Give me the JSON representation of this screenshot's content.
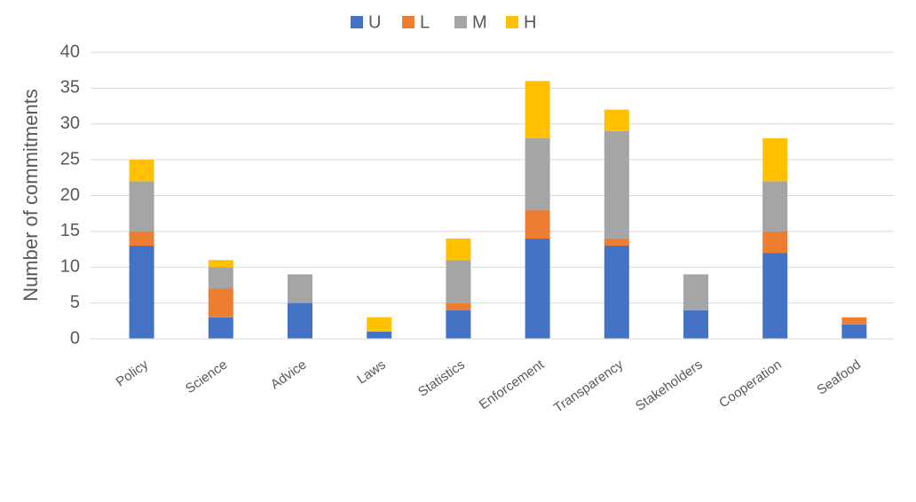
{
  "chart_data": {
    "type": "stacked_bar",
    "y_label": "Number of commitments",
    "categories": [
      "Policy",
      "Science",
      "Advice",
      "Laws",
      "Statistics",
      "Enforcement",
      "Transparency",
      "Stakeholders",
      "Cooperation",
      "Seafood"
    ],
    "series": [
      {
        "name": "U",
        "color": "#4472c4",
        "values": [
          13,
          3,
          5,
          1,
          4,
          14,
          13,
          4,
          12,
          2
        ]
      },
      {
        "name": "L",
        "color": "#ed7d31",
        "values": [
          2,
          4,
          0,
          0,
          1,
          4,
          1,
          0,
          3,
          1
        ]
      },
      {
        "name": "M",
        "color": "#a5a5a5",
        "values": [
          7,
          3,
          4,
          0,
          6,
          10,
          15,
          5,
          7,
          0
        ]
      },
      {
        "name": "H",
        "color": "#ffc000",
        "values": [
          3,
          1,
          0,
          2,
          3,
          8,
          3,
          0,
          6,
          0
        ]
      }
    ],
    "ylim": [
      0,
      40
    ],
    "yticks": [
      0,
      5,
      10,
      15,
      20,
      25,
      30,
      35,
      40
    ],
    "grid": true,
    "legend": "top"
  }
}
